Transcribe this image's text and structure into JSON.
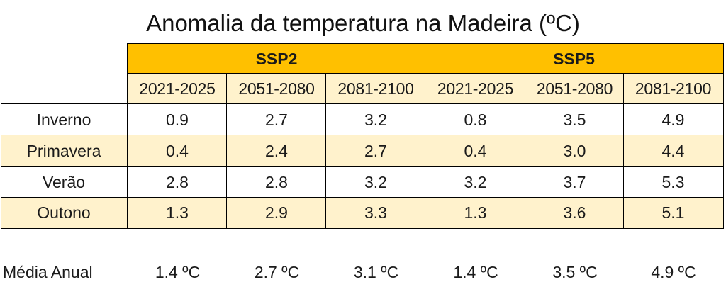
{
  "title": "Anomalia da temperatura na Madeira (ºC)",
  "scenarios": [
    "SSP2",
    "SSP5"
  ],
  "periods": [
    "2021-2025",
    "2051-2080",
    "2081-2100",
    "2021-2025",
    "2051-2080",
    "2081-2100"
  ],
  "rows": [
    {
      "season": "Inverno",
      "values": [
        "0.9",
        "2.7",
        "3.2",
        "0.8",
        "3.5",
        "4.9"
      ]
    },
    {
      "season": "Primavera",
      "values": [
        "0.4",
        "2.4",
        "2.7",
        "0.4",
        "3.0",
        "4.4"
      ]
    },
    {
      "season": "Verão",
      "values": [
        "2.8",
        "2.8",
        "3.2",
        "3.2",
        "3.7",
        "5.3"
      ]
    },
    {
      "season": "Outono",
      "values": [
        "1.3",
        "2.9",
        "3.3",
        "1.3",
        "3.6",
        "5.1"
      ]
    }
  ],
  "annual": {
    "label": "Média Anual",
    "values": [
      "1.4 ºC",
      "2.7 ºC",
      "3.1 ºC",
      "1.4 ºC",
      "3.5 ºC",
      "4.9 ºC"
    ]
  },
  "colors": {
    "header": "#ffc000",
    "band": "#fff2cc"
  },
  "chart_data": {
    "type": "table",
    "title": "Anomalia da temperatura na Madeira (ºC)",
    "columns": [
      {
        "scenario": "SSP2",
        "period": "2021-2025"
      },
      {
        "scenario": "SSP2",
        "period": "2051-2080"
      },
      {
        "scenario": "SSP2",
        "period": "2081-2100"
      },
      {
        "scenario": "SSP5",
        "period": "2021-2025"
      },
      {
        "scenario": "SSP5",
        "period": "2051-2080"
      },
      {
        "scenario": "SSP5",
        "period": "2081-2100"
      }
    ],
    "series": [
      {
        "name": "Inverno",
        "values": [
          0.9,
          2.7,
          3.2,
          0.8,
          3.5,
          4.9
        ]
      },
      {
        "name": "Primavera",
        "values": [
          0.4,
          2.4,
          2.7,
          0.4,
          3.0,
          4.4
        ]
      },
      {
        "name": "Verão",
        "values": [
          2.8,
          2.8,
          3.2,
          3.2,
          3.7,
          5.3
        ]
      },
      {
        "name": "Outono",
        "values": [
          1.3,
          2.9,
          3.3,
          1.3,
          3.6,
          5.1
        ]
      },
      {
        "name": "Média Anual",
        "values": [
          1.4,
          2.7,
          3.1,
          1.4,
          3.5,
          4.9
        ]
      }
    ]
  }
}
